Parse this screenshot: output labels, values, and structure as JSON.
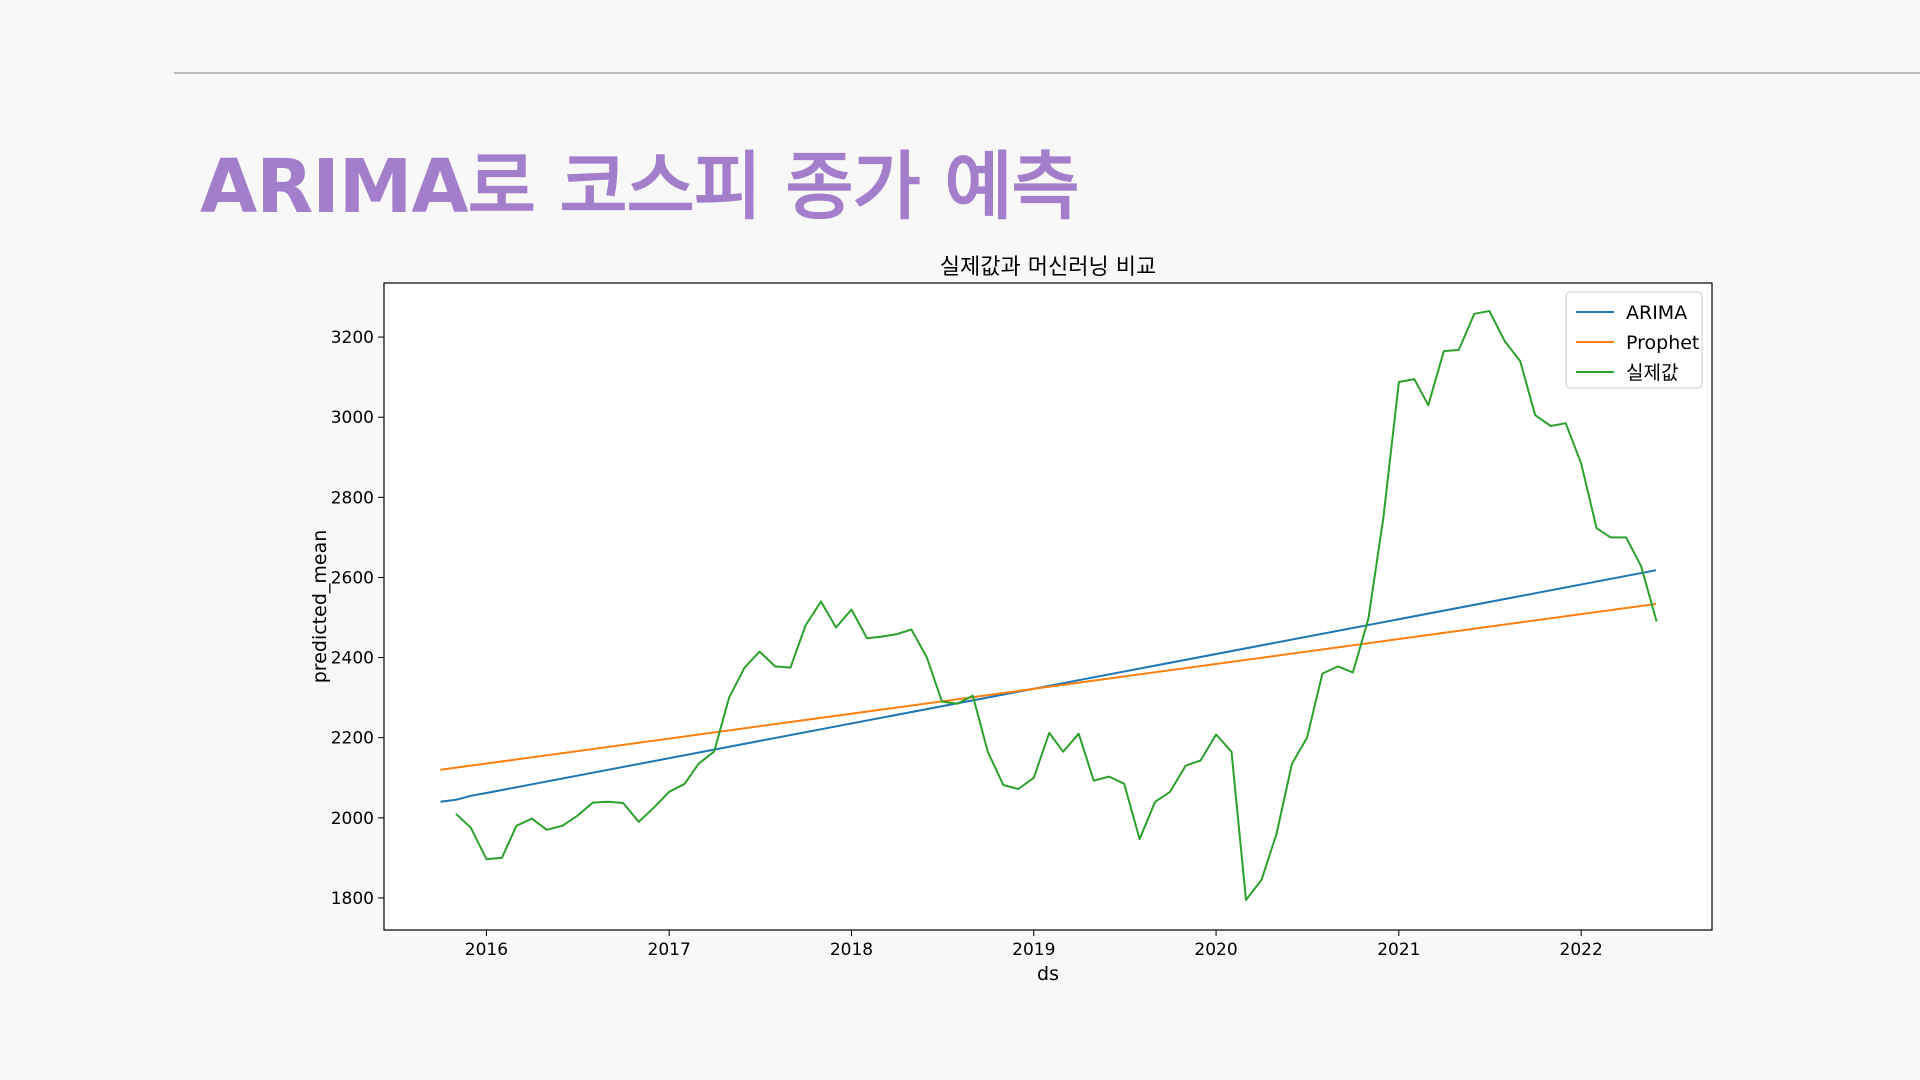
{
  "slide": {
    "title": "ARIMA로 코스피 종가 예측",
    "title_color": "#a37fcb"
  },
  "chart_data": {
    "type": "line",
    "title": "실제값과 머신러닝 비교",
    "xlabel": "ds",
    "ylabel": "predicted_mean",
    "x_tick_labels": [
      "2016",
      "2017",
      "2018",
      "2019",
      "2020",
      "2021",
      "2022"
    ],
    "y_ticks": [
      1800,
      2000,
      2200,
      2400,
      2600,
      2800,
      3000,
      3200
    ],
    "xlim": [
      "2015-06-10",
      "2022-09-20"
    ],
    "ylim": [
      1720,
      3335
    ],
    "legend_position": "top-right",
    "series": [
      {
        "name": "ARIMA",
        "color": "#1f77b4",
        "x": [
          "2015-10-01",
          "2015-11-01",
          "2015-12-01",
          "2016-01-01",
          "2022-05-31"
        ],
        "y": [
          2040,
          2045,
          2055,
          2062,
          2618
        ]
      },
      {
        "name": "Prophet",
        "color": "#ff7f0e",
        "x": [
          "2015-10-01",
          "2022-05-31"
        ],
        "y": [
          2120,
          2534
        ]
      },
      {
        "name": "실제값",
        "color": "#2ca02c",
        "x": [
          "2015-11-01",
          "2015-12-01",
          "2016-01-01",
          "2016-02-01",
          "2016-03-01",
          "2016-04-01",
          "2016-05-01",
          "2016-06-01",
          "2016-07-01",
          "2016-08-01",
          "2016-09-01",
          "2016-10-01",
          "2016-11-01",
          "2016-12-01",
          "2017-01-01",
          "2017-02-01",
          "2017-03-01",
          "2017-04-01",
          "2017-05-01",
          "2017-06-01",
          "2017-07-01",
          "2017-08-01",
          "2017-09-01",
          "2017-10-01",
          "2017-11-01",
          "2017-12-01",
          "2018-01-01",
          "2018-02-01",
          "2018-03-01",
          "2018-04-01",
          "2018-05-01",
          "2018-06-01",
          "2018-07-01",
          "2018-08-01",
          "2018-09-01",
          "2018-10-01",
          "2018-11-01",
          "2018-12-01",
          "2019-01-01",
          "2019-02-01",
          "2019-03-01",
          "2019-04-01",
          "2019-05-01",
          "2019-06-01",
          "2019-07-01",
          "2019-08-01",
          "2019-09-01",
          "2019-10-01",
          "2019-11-01",
          "2019-12-01",
          "2020-01-01",
          "2020-02-01",
          "2020-03-01",
          "2020-04-01",
          "2020-05-01",
          "2020-06-01",
          "2020-07-01",
          "2020-08-01",
          "2020-09-01",
          "2020-10-01",
          "2020-11-01",
          "2020-12-01",
          "2021-01-01",
          "2021-02-01",
          "2021-03-01",
          "2021-04-01",
          "2021-05-01",
          "2021-06-01",
          "2021-07-01",
          "2021-08-01",
          "2021-09-01",
          "2021-10-01",
          "2021-11-01",
          "2021-12-01",
          "2022-01-01",
          "2022-02-01",
          "2022-03-01",
          "2022-04-01",
          "2022-05-01",
          "2022-06-01"
        ],
        "y": [
          2010,
          1975,
          1897,
          1900,
          1980,
          1998,
          1970,
          1980,
          2005,
          2038,
          2040,
          2037,
          1990,
          2025,
          2065,
          2085,
          2135,
          2165,
          2300,
          2375,
          2415,
          2378,
          2375,
          2480,
          2540,
          2475,
          2520,
          2448,
          2452,
          2458,
          2470,
          2400,
          2290,
          2285,
          2305,
          2165,
          2082,
          2072,
          2100,
          2212,
          2165,
          2210,
          2093,
          2103,
          2085,
          1947,
          2040,
          2065,
          2130,
          2143,
          2208,
          2165,
          1795,
          1845,
          1960,
          2135,
          2200,
          2360,
          2378,
          2363,
          2497,
          2750,
          3088,
          3095,
          3030,
          3165,
          3168,
          3258,
          3265,
          3190,
          3140,
          3005,
          2978,
          2985,
          2885,
          2723,
          2700,
          2700,
          2628,
          2490
        ]
      }
    ]
  }
}
